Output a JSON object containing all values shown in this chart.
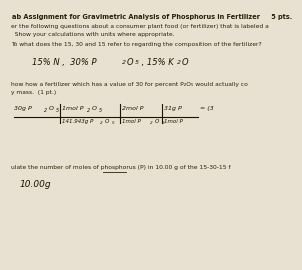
{
  "background_color": "#e8e0d0",
  "title_line": "ab Assignment for Gravimetric Analysis of Phosphorus in Fertilizer     5 pts.",
  "line1": "er the following questions about a consumer plant food (or fertilizer) that is labeled a",
  "line2": "  Show your calculations with units where appropriate.",
  "line3": "To what does the 15, 30 and 15 refer to regarding the composition of the fertilizer?",
  "handwritten1a": "15% N ,  30% P",
  "handwritten1b": "2",
  "handwritten1c": "O",
  "handwritten1d": "5",
  "handwritten1e": " , 15% K",
  "handwritten1f": "2",
  "handwritten1g": "O",
  "line4": "how how a fertilizer which has a value of 30 for percent P₂O₅ would actually co",
  "line4b": "y mass.  (1 pt.)",
  "line5": "ulate the number of moles of phosphorus (P) in 10.00 g of the 15-30-15 f",
  "hw2": "10.00g"
}
